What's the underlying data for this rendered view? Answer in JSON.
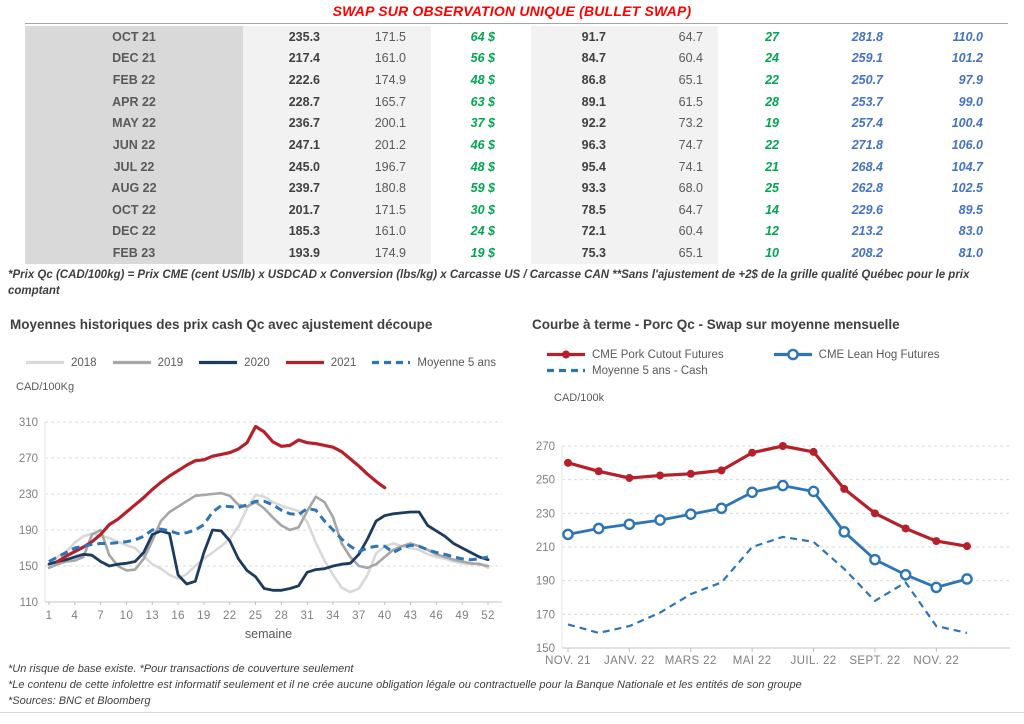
{
  "header": {
    "title": "SWAP SUR OBSERVATION UNIQUE (BULLET SWAP)",
    "title_color": "#ff0000"
  },
  "table": {
    "rows": [
      [
        "OCT 21",
        "235.3",
        "171.5",
        "64 $",
        "91.7",
        "64.7",
        "27",
        "281.8",
        "110.0"
      ],
      [
        "DEC 21",
        "217.4",
        "161.0",
        "56 $",
        "84.7",
        "60.4",
        "24",
        "259.1",
        "101.2"
      ],
      [
        "FEB 22",
        "222.6",
        "174.9",
        "48 $",
        "86.8",
        "65.1",
        "22",
        "250.7",
        "97.9"
      ],
      [
        "APR 22",
        "228.7",
        "165.7",
        "63 $",
        "89.1",
        "61.5",
        "28",
        "253.7",
        "99.0"
      ],
      [
        "MAY 22",
        "236.7",
        "200.1",
        "37 $",
        "92.2",
        "73.2",
        "19",
        "257.4",
        "100.4"
      ],
      [
        "JUN 22",
        "247.1",
        "201.2",
        "46 $",
        "96.3",
        "74.7",
        "22",
        "271.8",
        "106.0"
      ],
      [
        "JUL 22",
        "245.0",
        "196.7",
        "48 $",
        "95.4",
        "74.1",
        "21",
        "268.4",
        "104.7"
      ],
      [
        "AUG 22",
        "239.7",
        "180.8",
        "59 $",
        "93.3",
        "68.0",
        "25",
        "262.8",
        "102.5"
      ],
      [
        "OCT 22",
        "201.7",
        "171.5",
        "30 $",
        "78.5",
        "64.7",
        "14",
        "229.6",
        "89.5"
      ],
      [
        "DEC 22",
        "185.3",
        "161.0",
        "24 $",
        "72.1",
        "60.4",
        "12",
        "213.2",
        "83.0"
      ],
      [
        "FEB 23",
        "193.9",
        "174.9",
        "19 $",
        "75.3",
        "65.1",
        "10",
        "208.2",
        "81.0"
      ]
    ]
  },
  "footnote": "*Prix Qc (CAD/100kg) = Prix CME (cent US/lb) x USDCAD x Conversion (lbs/kg) x Carcasse US / Carcasse CAN **Sans l'ajustement de +2$ de la grille qualité Québec pour le prix comptant",
  "chart_data": [
    {
      "type": "line",
      "title": "Moyennes historiques des prix cash Qc avec ajustement découpe",
      "ylabel": "CAD/100Kg",
      "xlabel": "semaine",
      "ylim": [
        110,
        310
      ],
      "yticks": [
        110,
        150,
        190,
        230,
        270,
        310
      ],
      "xlim": [
        1,
        52
      ],
      "xticks": [
        1,
        4,
        7,
        10,
        13,
        16,
        19,
        22,
        25,
        28,
        31,
        34,
        37,
        40,
        43,
        46,
        49,
        52
      ],
      "xtick_labels": [
        "1",
        "4",
        "7",
        "10",
        "13",
        "16",
        "19",
        "22",
        "25",
        "28",
        "31",
        "34",
        "37",
        "40",
        "43",
        "46",
        "49",
        "52"
      ],
      "grid": "dashed-horizontal",
      "legend_position": "top",
      "series": [
        {
          "name": "2018",
          "color": "#d9d9d9",
          "width": 2.6,
          "x0": 1,
          "values": [
            155,
            160,
            166,
            176,
            183,
            186,
            184,
            181,
            177,
            173,
            170,
            161,
            152,
            147,
            140,
            136,
            141,
            150,
            158,
            165,
            172,
            180,
            194,
            214,
            229,
            227,
            221,
            217,
            214,
            211,
            199,
            176,
            156,
            140,
            126,
            121,
            125,
            140,
            164,
            172,
            175,
            172,
            170,
            168,
            163,
            160,
            158,
            155,
            153,
            152,
            153,
            148
          ]
        },
        {
          "name": "2019",
          "color": "#a6a6a6",
          "width": 2.6,
          "x0": 1,
          "values": [
            148,
            152,
            155,
            156,
            160,
            185,
            190,
            162,
            150,
            145,
            146,
            158,
            178,
            200,
            210,
            216,
            222,
            228,
            229,
            230,
            231,
            228,
            218,
            216,
            221,
            214,
            204,
            195,
            190,
            193,
            211,
            227,
            221,
            204,
            175,
            160,
            150,
            148,
            152,
            160,
            168,
            172,
            175,
            172,
            168,
            163,
            160,
            157,
            155,
            153,
            152,
            150
          ]
        },
        {
          "name": "2020",
          "color": "#1c3b5e",
          "width": 2.8,
          "x0": 1,
          "values": [
            152,
            155,
            157,
            160,
            163,
            162,
            155,
            150,
            152,
            153,
            155,
            165,
            185,
            189,
            186,
            140,
            130,
            133,
            165,
            190,
            189,
            178,
            158,
            145,
            138,
            125,
            123,
            123,
            125,
            128,
            143,
            146,
            147,
            150,
            152,
            153,
            163,
            180,
            200,
            206,
            208,
            209,
            210,
            210,
            195,
            189,
            183,
            175,
            170,
            165,
            160,
            157
          ]
        },
        {
          "name": "2021",
          "color": "#b5202a",
          "width": 3.2,
          "x0": 1,
          "values": [
            null,
            155,
            161,
            166,
            171,
            177,
            185,
            196,
            202,
            210,
            218,
            226,
            235,
            243,
            250,
            256,
            262,
            267,
            268,
            272,
            274,
            276,
            280,
            287,
            305,
            299,
            288,
            283,
            284,
            290,
            287,
            286,
            284,
            282,
            277,
            269,
            261,
            252,
            244,
            237,
            null,
            null,
            null,
            null,
            null,
            null,
            null,
            null,
            null,
            null,
            null,
            null
          ]
        },
        {
          "name": "Moyenne 5 ans",
          "color": "#2e75b6",
          "width": 3,
          "dash": "8 5",
          "x0": 1,
          "values": [
            155,
            160,
            165,
            170,
            172,
            174,
            175,
            175,
            176,
            177,
            179,
            183,
            190,
            191,
            189,
            186,
            187,
            190,
            196,
            210,
            217,
            216,
            215,
            218,
            222,
            222,
            218,
            212,
            208,
            207,
            214,
            212,
            200,
            190,
            180,
            172,
            166,
            170,
            172,
            172,
            165,
            170,
            173,
            172,
            168,
            165,
            163,
            160,
            158,
            157,
            158,
            160
          ]
        }
      ]
    },
    {
      "type": "line",
      "title": "Courbe à terme - Porc Qc - Swap sur moyenne mensuelle",
      "ylabel": "CAD/100k",
      "xlabel": "",
      "ylim": [
        150,
        270
      ],
      "yticks": [
        150,
        170,
        190,
        210,
        230,
        250,
        270
      ],
      "xlim": [
        0,
        13
      ],
      "xticks": [
        0,
        2,
        4,
        6,
        8,
        10,
        12
      ],
      "xtick_labels": [
        "NOV. 21",
        "JANV. 22",
        "MARS 22",
        "MAI 22",
        "JUIL. 22",
        "SEPT. 22",
        "NOV. 22"
      ],
      "n_points": 14,
      "grid": "dashed-horizontal",
      "legend_position": "top",
      "series": [
        {
          "name": "CME Pork Cutout Futures",
          "color": "#b5202a",
          "width": 3.2,
          "marker": "dot",
          "x0": 0,
          "values": [
            260,
            255,
            251,
            252.5,
            253.5,
            255.5,
            266,
            270,
            266.5,
            244.5,
            230,
            221,
            213.5,
            210.5
          ]
        },
        {
          "name": "CME Lean Hog Futures",
          "color": "#2e75b6",
          "width": 2.8,
          "marker": "circle",
          "x0": 0,
          "values": [
            217.5,
            221,
            223.5,
            226,
            229.5,
            233,
            242.5,
            246.5,
            243,
            219,
            202.5,
            193.5,
            186,
            191
          ]
        },
        {
          "name": "Moyenne 5 ans - Cash",
          "color": "#2e75b6",
          "width": 2.2,
          "dash": "7 5",
          "x0": 0,
          "values": [
            164,
            159,
            163,
            171,
            182,
            189,
            210,
            216,
            213,
            197,
            178,
            189,
            163,
            159
          ]
        }
      ]
    }
  ],
  "footer": {
    "lines": [
      "*Un risque de base existe. *Pour transactions de couverture seulement",
      "*Le contenu de cette infolettre est informatif seulement et il ne crée aucune obligation légale ou contractuelle pour la Banque Nationale et les entités de son groupe",
      "*Sources: BNC et Bloomberg"
    ]
  }
}
